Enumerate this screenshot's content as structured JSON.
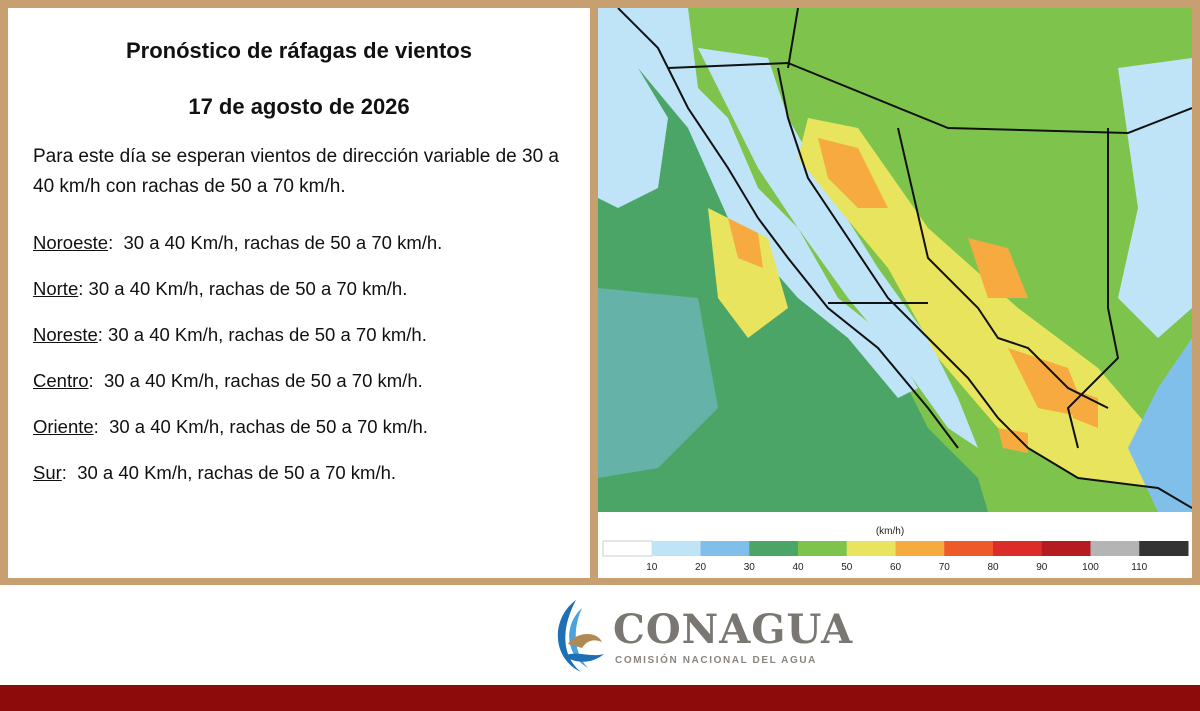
{
  "header": {
    "title": "Pronóstico de ráfagas de vientos",
    "date": "17 de agosto de 2026"
  },
  "summary": "Para este día se esperan vientos de dirección variable de 30 a 40 km/h con rachas de 50 a 70 km/h.",
  "regions": [
    {
      "name": "Noroeste",
      "text": ":  30 a 40 Km/h, rachas de 50 a 70 km/h."
    },
    {
      "name": "Norte",
      "text": ": 30 a 40 Km/h, rachas de 50 a 70 km/h."
    },
    {
      "name": "Noreste",
      "text": ": 30 a 40 Km/h, rachas de 50 a 70 km/h."
    },
    {
      "name": "Centro",
      "text": ":  30 a 40 Km/h, rachas de 50 a 70 km/h."
    },
    {
      "name": "Oriente",
      "text": ":  30 a 40 Km/h, rachas de 50 a 70 km/h."
    },
    {
      "name": "Sur",
      "text": ":  30 a 40 Km/h, rachas de 50 a 70 km/h."
    }
  ],
  "legend": {
    "unit": "(km/h)",
    "ticks": [
      10,
      20,
      30,
      40,
      50,
      60,
      70,
      80,
      90,
      100,
      110
    ],
    "colors": [
      "#ffffff",
      "#bfe4f8",
      "#80bfe9",
      "#4aa566",
      "#7ec44c",
      "#e9e45e",
      "#f6aa40",
      "#ee5b2a",
      "#db2c2a",
      "#b51c22",
      "#b4b4b4",
      "#333333"
    ]
  },
  "footer": {
    "brand": "CONAGUA",
    "subtitle": "COMISIÓN NACIONAL DEL AGUA"
  }
}
